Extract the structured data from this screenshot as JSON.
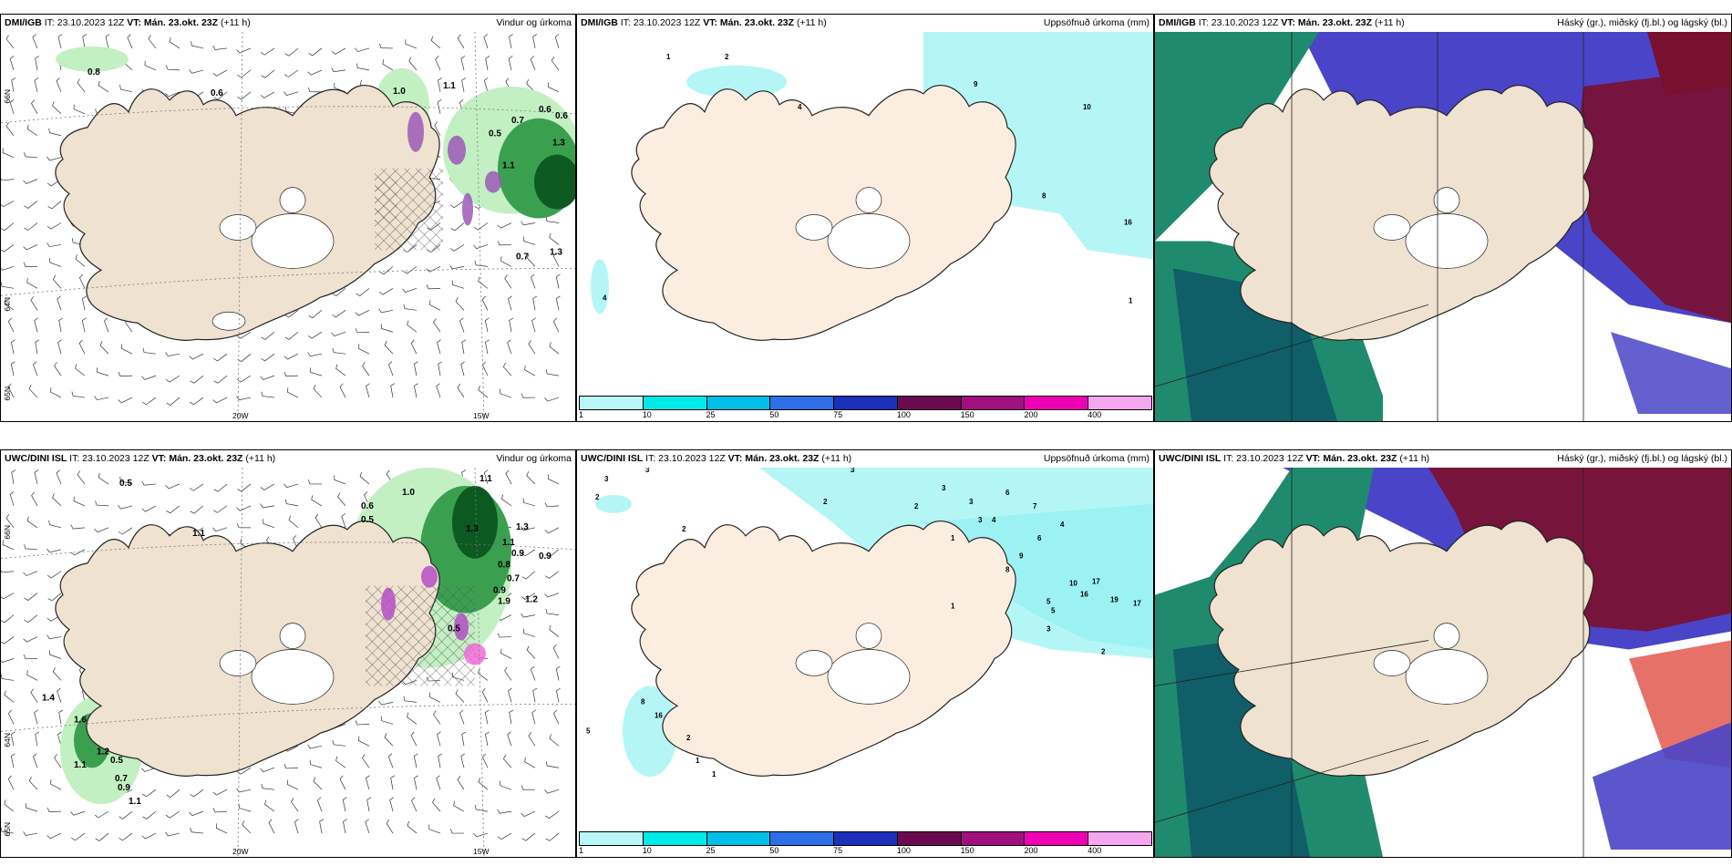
{
  "rows": [
    {
      "source": "DMI/IGB",
      "it_text": "IT: 23.10.2023 12Z",
      "vt_label": "VT: Mán. 23.okt. 23Z",
      "lead": "(+11 h)"
    },
    {
      "source": "UWC/DINI ISL",
      "it_text": "IT: 23.10.2023 12Z",
      "vt_label": "VT: Mán. 23.okt. 23Z",
      "lead": "(+11 h)"
    }
  ],
  "titles": {
    "wind": "Vindur og úrkoma",
    "precip": "Uppsöfnuð úrkoma (mm)",
    "cloud": "Háský (gr.), miðský (fj.bl.) og lágský (bl.)"
  },
  "axes": {
    "lat_66": "66N",
    "lat_64": "64N",
    "lat_65": "65N",
    "lon_20": "20W",
    "lon_15": "15W"
  },
  "colorbar": {
    "ticks": [
      "1",
      "10",
      "25",
      "50",
      "75",
      "100",
      "150",
      "200",
      "400"
    ],
    "colors": [
      "#b9f7f7",
      "#00eaea",
      "#00bfe8",
      "#2f6fe6",
      "#1b2fb8",
      "#6b0a4e",
      "#a0107e",
      "#f000b4",
      "#f4a6f0"
    ]
  },
  "colors": {
    "land": "#efe2d1",
    "precip_light": "#c3f0c3",
    "precip_mid": "#3aa050",
    "precip_heavy": "#0c5a22",
    "snow": "#9b59b6",
    "accum": "#b4f6f6",
    "cloud_high": "#0f6b5c",
    "cloud_mid": "#4a44c8",
    "cloud_low": "#7a1030"
  },
  "annotations": {
    "wind_top": [
      "0.8",
      "0.6",
      "1.0",
      "1.1",
      "0.6",
      "0.7",
      "0.6",
      "0.5",
      "1.3",
      "1.1",
      "0.7",
      "1.3"
    ],
    "wind_bottom": [
      "0.5",
      "0.6",
      "1.0",
      "1.1",
      "0.5",
      "0.9",
      "1.3",
      "1.1",
      "0.9",
      "0.7",
      "1.2",
      "1.9",
      "0.9",
      "0.5",
      "1.4",
      "1.6",
      "1.1",
      "1.2",
      "0.5",
      "0.7",
      "0.9",
      "1.1",
      "0.8",
      "1.1",
      "1.3"
    ],
    "precip_top": [
      "1",
      "2",
      "4",
      "9",
      "10",
      "8",
      "16",
      "4",
      "1"
    ],
    "precip_bottom": [
      "3",
      "2",
      "3",
      "3",
      "3",
      "1",
      "2",
      "2",
      "2",
      "3",
      "6",
      "3",
      "4",
      "7",
      "4",
      "6",
      "9",
      "8",
      "5",
      "10",
      "16",
      "17",
      "19",
      "17",
      "5",
      "1",
      "2",
      "3",
      "8",
      "16",
      "2",
      "5",
      "1",
      "1"
    ]
  }
}
